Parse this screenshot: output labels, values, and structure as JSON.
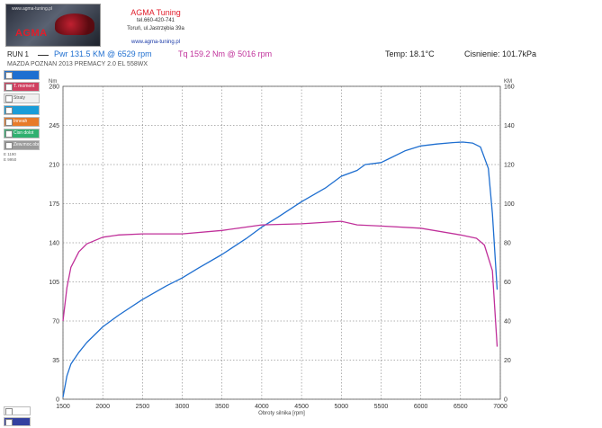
{
  "header": {
    "logo_url": "www.agma-tuning.pl",
    "logo_text": "AGMA",
    "company_name": "AGMA Tuning",
    "phone": "tel.660-420-741",
    "address": "Toruń, ul.Jastrzębia 39a",
    "website": "www.agma-tuning.pl"
  },
  "run": {
    "label": "RUN 1",
    "pwr": "Pwr  131.5 KM @ 6529 rpm",
    "tq": "Tq 159.2 Nm @ 5016 rpm",
    "temp": "Temp: 18.1°C",
    "pressure": "Cisnienie: 101.7kPa",
    "vehicle": "MAZDA POZNAN 2013 PREMACY 2.0 EL 558WX",
    "pwr_color": "#1f6fd0",
    "tq_color": "#c0309a"
  },
  "legend": {
    "items": [
      {
        "label": "",
        "color": "#1f6fd0"
      },
      {
        "label": "T. moment obr",
        "color": "#d04060"
      },
      {
        "label": "Straty",
        "color": "#f0f0f0"
      },
      {
        "label": "",
        "color": "#1a9cd8"
      },
      {
        "label": "Inneah",
        "color": "#e77b2a"
      },
      {
        "label": "Cisn dolot",
        "color": "#30b070"
      },
      {
        "label": "Zew.moc.obr",
        "color": "#9b9b9b"
      }
    ],
    "extra": [
      "E 1190",
      "E 9950"
    ],
    "bottom": [
      {
        "label": "",
        "color": "#ffffff"
      },
      {
        "label": "",
        "color": "#3340a0"
      }
    ]
  },
  "chart_data": {
    "type": "line",
    "xlabel": "Obroty silnika [rpm]",
    "ylabel_left": "Nm",
    "ylabel_right": "KM",
    "x_ticks": [
      1500,
      2000,
      2500,
      3000,
      3500,
      4000,
      4500,
      5000,
      5500,
      6000,
      6500,
      7000
    ],
    "xlim": [
      1500,
      7000
    ],
    "y_left_ticks": [
      0,
      35,
      70,
      105,
      140,
      175,
      210,
      245,
      280
    ],
    "ylim_left": [
      0,
      280
    ],
    "y_right_ticks": [
      0,
      20,
      40,
      60,
      80,
      100,
      120,
      140,
      160
    ],
    "ylim_right": [
      0,
      160
    ],
    "grid": true,
    "series": [
      {
        "name": "Pwr",
        "axis": "right",
        "color": "#1f6fd0",
        "x": [
          1500,
          1550,
          1600,
          1700,
          1800,
          2000,
          2200,
          2500,
          2800,
          3000,
          3200,
          3500,
          3800,
          4000,
          4200,
          4500,
          4800,
          5000,
          5200,
          5300,
          5500,
          5600,
          5800,
          6000,
          6200,
          6400,
          6529,
          6650,
          6750,
          6850,
          6900,
          6960
        ],
        "y": [
          1,
          12,
          18,
          24,
          29,
          37,
          43,
          51,
          58,
          62,
          67,
          74,
          82,
          88,
          93,
          101,
          108,
          114,
          117,
          120,
          121,
          123,
          127,
          129.5,
          130.5,
          131.2,
          131.5,
          131,
          129,
          118,
          95,
          56
        ]
      },
      {
        "name": "Tq",
        "axis": "left",
        "color": "#c0309a",
        "x": [
          1500,
          1550,
          1600,
          1700,
          1800,
          2000,
          2200,
          2500,
          3000,
          3500,
          4000,
          4500,
          5000,
          5200,
          5500,
          6000,
          6500,
          6700,
          6800,
          6900,
          6960
        ],
        "y": [
          70,
          100,
          118,
          132,
          139,
          145,
          147,
          148,
          148,
          151,
          156,
          157,
          159.2,
          156,
          155,
          153,
          147,
          144,
          138,
          115,
          47
        ]
      }
    ]
  }
}
